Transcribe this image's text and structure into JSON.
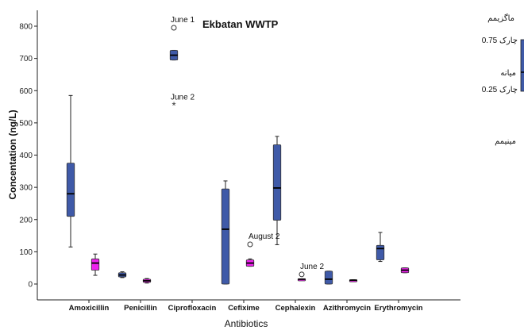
{
  "chart_data": {
    "type": "boxplot",
    "title": "Ekbatan WWTP",
    "xlabel": "Antibiotics",
    "ylabel": "Concentation (ng/L)",
    "ylim": [
      -40,
      850
    ],
    "yticks": [
      0,
      100,
      200,
      300,
      400,
      500,
      600,
      700,
      800
    ],
    "grid": false,
    "categories": [
      "Amoxicillin",
      "Penicillin",
      "Ciprofloxacin",
      "Cefixime",
      "Cephalexin",
      "Azithromycin",
      "Erythromycin"
    ],
    "colors": {
      "blue": "#3f5aa8",
      "magenta": "#ee22ee"
    },
    "series": [
      {
        "color": "blue",
        "boxes": [
          {
            "min": 115,
            "q1": 210,
            "median": 280,
            "q3": 375,
            "max": 585
          },
          {
            "min": 20,
            "q1": 22,
            "median": 28,
            "q3": 35,
            "max": 38
          },
          {
            "min": 695,
            "q1": 695,
            "median": 710,
            "q3": 725,
            "max": 725
          },
          {
            "min": 0,
            "q1": 0,
            "median": 170,
            "q3": 295,
            "max": 320
          },
          {
            "min": 122,
            "q1": 198,
            "median": 298,
            "q3": 432,
            "max": 458
          },
          {
            "min": 0,
            "q1": 0,
            "median": 15,
            "q3": 40,
            "max": 40
          },
          {
            "min": 70,
            "q1": 75,
            "median": 110,
            "q3": 120,
            "max": 160
          }
        ]
      },
      {
        "color": "magenta",
        "boxes": [
          {
            "min": 27,
            "q1": 43,
            "median": 65,
            "q3": 78,
            "max": 93
          },
          {
            "min": 3,
            "q1": 5,
            "median": 10,
            "q3": 15,
            "max": 17
          },
          null,
          {
            "min": 55,
            "q1": 55,
            "median": 65,
            "q3": 75,
            "max": 78
          },
          {
            "min": 12,
            "q1": 12,
            "median": 15,
            "q3": 16,
            "max": 16
          },
          {
            "min": 12,
            "q1": 12,
            "median": 12,
            "q3": 13,
            "max": 13
          },
          {
            "min": 35,
            "q1": 35,
            "median": 43,
            "q3": 50,
            "max": 50
          }
        ]
      }
    ],
    "outliers": [
      {
        "category": "Ciprofloxacin",
        "series": 0,
        "value": 795,
        "marker": "circle",
        "label": "June 1"
      },
      {
        "category": "Ciprofloxacin",
        "series": 0,
        "value": 555,
        "marker": "star",
        "label": "June 2"
      },
      {
        "category": "Cefixime",
        "series": 1,
        "value": 123,
        "marker": "circle",
        "label": "August 2"
      },
      {
        "category": "Cephalexin",
        "series": 1,
        "value": 30,
        "marker": "circle",
        "label": "June 2"
      }
    ],
    "legend": {
      "position": "right",
      "items": [
        "ماگزیمم",
        "چارک 0.75",
        "میانه",
        "چارک 0.25",
        "مینیمم"
      ]
    }
  }
}
